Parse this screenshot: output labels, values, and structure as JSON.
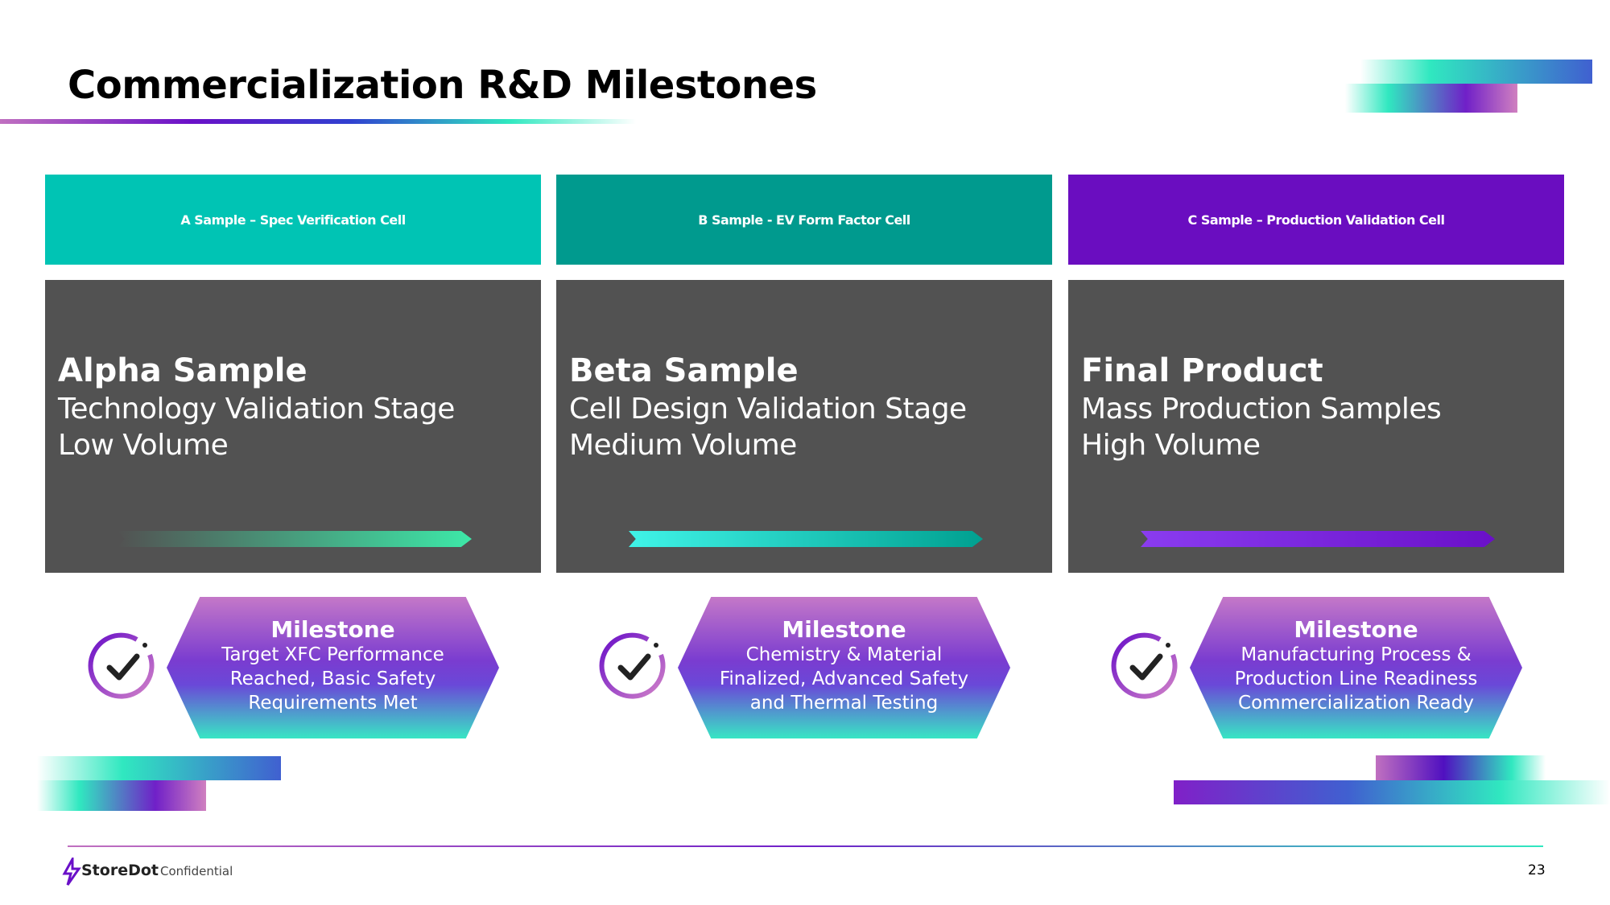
{
  "header": {
    "title": "Commercialization R&D Milestones"
  },
  "columns": [
    {
      "header": "A Sample – Spec Verification Cell",
      "title": "Alpha Sample",
      "lines": [
        "Technology Validation Stage",
        "Low Volume"
      ],
      "milestone": {
        "title": "Milestone",
        "lines": [
          "Target XFC Performance",
          "Reached, Basic Safety",
          "Requirements Met"
        ]
      }
    },
    {
      "header": "B Sample - EV Form Factor Cell",
      "title": "Beta Sample",
      "lines": [
        "Cell Design Validation Stage",
        "Medium Volume"
      ],
      "milestone": {
        "title": "Milestone",
        "lines": [
          "Chemistry & Material",
          "Finalized, Advanced Safety",
          "and Thermal Testing"
        ]
      }
    },
    {
      "header": "C Sample – Production Validation Cell",
      "title": "Final Product",
      "lines": [
        "Mass Production Samples",
        "High Volume"
      ],
      "milestone": {
        "title": "Milestone",
        "lines": [
          "Manufacturing Process &",
          "Production Line Readiness",
          "Commercialization Ready"
        ]
      }
    }
  ],
  "footer": {
    "brand": "StoreDot",
    "confidential": "Confidential",
    "page": "23"
  }
}
